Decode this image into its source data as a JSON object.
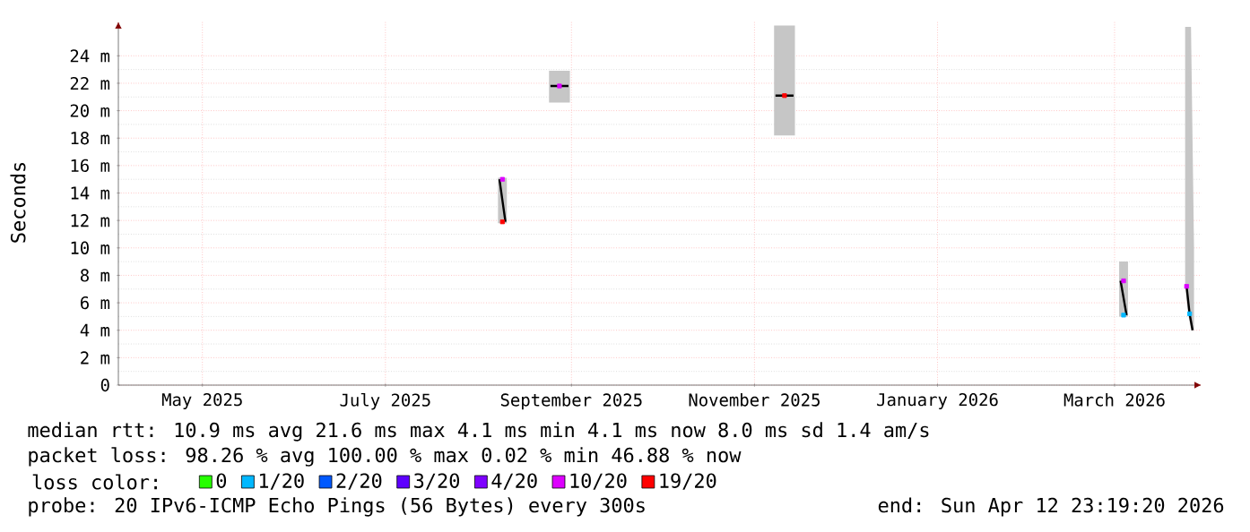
{
  "chart_data": {
    "type": "line",
    "ylabel": "Seconds",
    "xlim": [
      "2025-04-17",
      "2026-04-13"
    ],
    "xticks": [
      {
        "value": "2025-05-15",
        "label": "May 2025"
      },
      {
        "value": "2025-07-15",
        "label": "July 2025"
      },
      {
        "value": "2025-09-15",
        "label": "September 2025"
      },
      {
        "value": "2025-11-15",
        "label": "November 2025"
      },
      {
        "value": "2026-01-15",
        "label": "January 2026"
      },
      {
        "value": "2026-03-15",
        "label": "March 2026"
      }
    ],
    "ylim": [
      0,
      26.5
    ],
    "yticks": [
      0,
      {
        "value": 2,
        "label": "2 m"
      },
      {
        "value": 4,
        "label": "4 m"
      },
      {
        "value": 6,
        "label": "6 m"
      },
      {
        "value": 8,
        "label": "8 m"
      },
      {
        "value": 10,
        "label": "10 m"
      },
      {
        "value": 12,
        "label": "12 m"
      },
      {
        "value": 14,
        "label": "14 m"
      },
      {
        "value": 16,
        "label": "16 m"
      },
      {
        "value": 18,
        "label": "18 m"
      },
      {
        "value": 20,
        "label": "20 m"
      },
      {
        "value": 22,
        "label": "22 m"
      },
      {
        "value": 24,
        "label": "24 m"
      }
    ],
    "grid": true,
    "legend": "bottom",
    "legend_title": "loss color:",
    "marker": "square",
    "series": [
      {
        "color": "#000000",
        "marker": "none",
        "x": [
          "2025-08-22",
          "2025-08-24",
          "2025-09-01",
          "2025-09-08",
          "2025-09-14",
          "2025-10-15",
          "2025-11-22",
          "2025-11-28",
          "2025-12-15",
          "2026-03-17",
          "2026-03-19",
          "2026-03-25",
          "2026-04-08",
          "2026-04-09",
          "2026-04-10"
        ],
        "values": [
          15.0,
          11.9,
          null,
          21.8,
          21.8,
          null,
          21.1,
          21.1,
          null,
          7.6,
          5.1,
          null,
          7.2,
          5.2,
          4.0
        ],
        "lower": [
          11.9,
          11.9,
          null,
          20.7,
          20.7,
          null,
          18.3,
          18.3,
          null,
          5.1,
          5.1,
          null,
          7.2,
          5.2,
          4.0
        ],
        "upper": [
          15.0,
          15.0,
          null,
          22.8,
          22.8,
          null,
          26.1,
          26.1,
          null,
          8.9,
          8.9,
          null,
          26.0,
          26.0,
          10.0
        ]
      },
      {
        "type": "scatter",
        "name": "0",
        "color": "#26ff00"
      },
      {
        "type": "scatter",
        "name": "1/20",
        "color": "#00b8ff",
        "x": [
          "2026-03-18",
          "2026-04-09"
        ],
        "values": [
          5.1,
          5.2
        ]
      },
      {
        "type": "scatter",
        "name": "2/20",
        "color": "#0059ff"
      },
      {
        "type": "scatter",
        "name": "3/20",
        "color": "#5e00ff"
      },
      {
        "type": "scatter",
        "name": "4/20",
        "color": "#7e00ff"
      },
      {
        "type": "scatter",
        "name": "10/20",
        "color": "#dd00ff",
        "x": [
          "2025-08-23",
          "2025-09-11",
          "2026-03-18",
          "2026-04-08"
        ],
        "values": [
          15.0,
          21.8,
          7.6,
          7.2
        ]
      },
      {
        "type": "scatter",
        "name": "19/20",
        "color": "#ff0000",
        "x": [
          "2025-08-23",
          "2025-11-25"
        ],
        "values": [
          11.9,
          21.1
        ]
      }
    ],
    "annotations": [
      "median rtt:  10.9 ms avg  21.6 ms max  4.1 ms min  4.1 ms now  8.0 ms sd  1.4   am/s",
      "packet loss: 98.26 % avg  100.00 % max  0.02 % min  46.88 % now",
      "probe:       20 IPv6-ICMP Echo Pings (56 Bytes) every 300s",
      "end: Sun Apr 12 23:19:20 2026"
    ]
  }
}
